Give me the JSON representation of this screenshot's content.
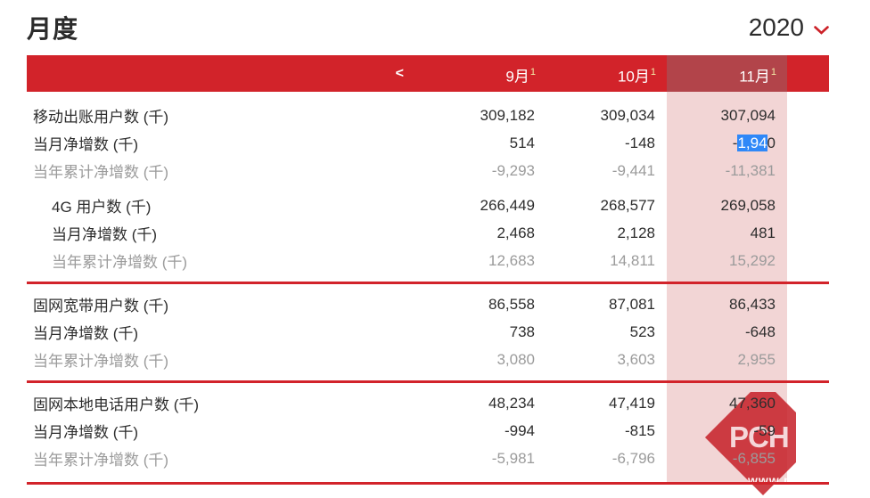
{
  "page": {
    "title": "月度",
    "year": "2020"
  },
  "table": {
    "nav_prev": "<",
    "columns": [
      {
        "label": "9月",
        "superscript": "1",
        "highlighted": false
      },
      {
        "label": "10月",
        "superscript": "1",
        "highlighted": false
      },
      {
        "label": "11月",
        "superscript": "1",
        "highlighted": true
      }
    ],
    "groups": [
      {
        "rows": [
          {
            "label": "移动出账用户数 (千)",
            "indent": false,
            "muted": false,
            "values": [
              "309,182",
              "309,034",
              "307,094"
            ]
          },
          {
            "label": "当月净增数 (千)",
            "indent": false,
            "muted": false,
            "values": [
              "514",
              "-148",
              "-1,940"
            ],
            "selection": {
              "col": 2,
              "prefix": "-",
              "highlighted": "1,94",
              "suffix": "0"
            }
          },
          {
            "label": "当年累计净增数 (千)",
            "indent": false,
            "muted": true,
            "values": [
              "-9,293",
              "-9,441",
              "-11,381"
            ]
          },
          {
            "label": "4G 用户数 (千)",
            "indent": true,
            "muted": false,
            "subgap": true,
            "values": [
              "266,449",
              "268,577",
              "269,058"
            ]
          },
          {
            "label": "当月净增数 (千)",
            "indent": true,
            "muted": false,
            "values": [
              "2,468",
              "2,128",
              "481"
            ]
          },
          {
            "label": "当年累计净增数 (千)",
            "indent": true,
            "muted": true,
            "values": [
              "12,683",
              "14,811",
              "15,292"
            ]
          }
        ]
      },
      {
        "rows": [
          {
            "label": "固网宽带用户数 (千)",
            "indent": false,
            "muted": false,
            "values": [
              "86,558",
              "87,081",
              "86,433"
            ]
          },
          {
            "label": "当月净增数 (千)",
            "indent": false,
            "muted": false,
            "values": [
              "738",
              "523",
              "-648"
            ]
          },
          {
            "label": "当年累计净增数 (千)",
            "indent": false,
            "muted": true,
            "values": [
              "3,080",
              "3,603",
              "2,955"
            ]
          }
        ]
      },
      {
        "rows": [
          {
            "label": "固网本地电话用户数 (千)",
            "indent": false,
            "muted": false,
            "values": [
              "48,234",
              "47,419",
              "47,360"
            ]
          },
          {
            "label": "当月净增数 (千)",
            "indent": false,
            "muted": false,
            "values": [
              "-994",
              "-815",
              "-59"
            ]
          },
          {
            "label": "当年累计净增数 (千)",
            "indent": false,
            "muted": true,
            "values": [
              "-5,981",
              "-6,796",
              "-6,855"
            ]
          }
        ]
      }
    ]
  },
  "watermark": {
    "logo_text": "PCH",
    "url_text": "www.p"
  },
  "colors": {
    "accent_red": "#D2232A",
    "header_highlight": "#B2444A",
    "column_highlight": "#F2D5D5",
    "selection_blue": "#2F88F8",
    "muted_gray": "#9B9B9B",
    "superscript_yellow": "#F2ECA8"
  }
}
